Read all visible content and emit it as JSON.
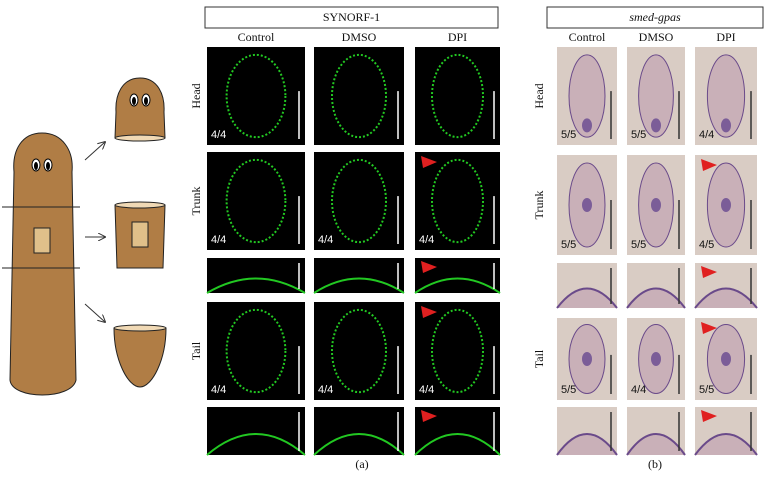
{
  "panels": [
    {
      "title": "SYNORF-1",
      "columns": [
        "Control",
        "DMSO",
        "DPI"
      ],
      "rows": [
        {
          "label": "Head",
          "counts": [
            "4/4",
            "",
            ""
          ]
        },
        {
          "label": "Trunk",
          "counts": [
            "4/4",
            "4/4",
            "4/4"
          ]
        },
        {
          "label": "Tail",
          "counts": [
            "4/4",
            "4/4",
            "4/4"
          ]
        }
      ],
      "caption": "(a)"
    },
    {
      "title": "smed-gpas",
      "columns": [
        "Control",
        "DMSO",
        "DPI"
      ],
      "rows": [
        {
          "label": "Head",
          "counts": [
            "5/5",
            "5/5",
            "4/4"
          ]
        },
        {
          "label": "Trunk",
          "counts": [
            "5/5",
            "5/5",
            "4/5"
          ]
        },
        {
          "label": "Tail",
          "counts": [
            "5/5",
            "4/4",
            "5/5"
          ]
        }
      ],
      "caption": "(b)"
    }
  ]
}
